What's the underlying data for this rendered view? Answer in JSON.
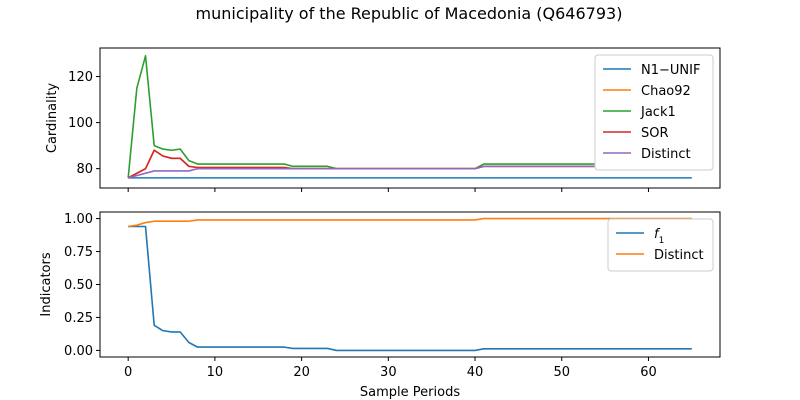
{
  "title": "municipality of the Republic of Macedonia (Q646793)",
  "chart_data": [
    {
      "type": "line",
      "ylabel": "Cardinality",
      "xlabel": "",
      "xlim": [
        -3.25,
        68.25
      ],
      "ylim": [
        71.6,
        132.4
      ],
      "xticks": [
        0,
        10,
        20,
        30,
        40,
        50,
        60
      ],
      "yticks": [
        80,
        100,
        120
      ],
      "ytick_labels": [
        "80",
        "100",
        "120"
      ],
      "legend_position": "upper right",
      "series": [
        {
          "name": "N1−UNIF",
          "color": "#1f77b4",
          "x": [
            0,
            65
          ],
          "y": [
            76,
            76
          ]
        },
        {
          "name": "Chao92",
          "color": "#ff7f0e",
          "x": [
            0,
            2,
            3,
            4,
            5,
            6,
            7,
            8,
            18,
            19,
            23,
            24,
            40,
            41,
            65
          ],
          "y": [
            76,
            80,
            88,
            85.5,
            84.5,
            84.5,
            81,
            80.5,
            80.5,
            80,
            80,
            80,
            80,
            81,
            81
          ]
        },
        {
          "name": "Jack1",
          "color": "#2ca02c",
          "x": [
            0,
            1,
            2,
            3,
            4,
            5,
            6,
            7,
            8,
            18,
            19,
            23,
            24,
            40,
            41,
            65
          ],
          "y": [
            76,
            115,
            129,
            90,
            88.5,
            88,
            88.5,
            83.5,
            82,
            82,
            81,
            81,
            80,
            80,
            82,
            82
          ]
        },
        {
          "name": "SOR",
          "color": "#d62728",
          "x": [
            0,
            2,
            3,
            4,
            5,
            6,
            7,
            8,
            18,
            19,
            23,
            24,
            40,
            41,
            65
          ],
          "y": [
            76,
            80,
            88,
            85.5,
            84.5,
            84.5,
            81,
            80.5,
            80.5,
            80,
            80,
            80,
            80,
            81,
            81
          ]
        },
        {
          "name": "Distinct",
          "color": "#9467bd",
          "x": [
            0,
            3,
            4,
            5,
            6,
            7,
            8,
            40,
            41,
            65
          ],
          "y": [
            76,
            79,
            79,
            79,
            79,
            79,
            80,
            80,
            81,
            81
          ]
        }
      ]
    },
    {
      "type": "line",
      "ylabel": "Indicators",
      "xlabel": "Sample Periods",
      "xlim": [
        -3.25,
        68.25
      ],
      "ylim": [
        -0.05,
        1.05
      ],
      "xticks": [
        0,
        10,
        20,
        30,
        40,
        50,
        60
      ],
      "xtick_labels": [
        "0",
        "10",
        "20",
        "30",
        "40",
        "50",
        "60"
      ],
      "yticks": [
        0.0,
        0.25,
        0.5,
        0.75,
        1.0
      ],
      "ytick_labels": [
        "0.00",
        "0.25",
        "0.50",
        "0.75",
        "1.00"
      ],
      "legend_position": "upper right",
      "series": [
        {
          "name": "f1",
          "color": "#1f77b4",
          "x": [
            0,
            1,
            2,
            3,
            4,
            5,
            6,
            7,
            8,
            18,
            19,
            23,
            24,
            40,
            41,
            65
          ],
          "y": [
            0.94,
            0.94,
            0.94,
            0.19,
            0.15,
            0.14,
            0.14,
            0.06,
            0.025,
            0.025,
            0.015,
            0.015,
            0.0,
            0.0,
            0.012,
            0.012
          ]
        },
        {
          "name": "Distinct",
          "color": "#ff7f0e",
          "x": [
            0,
            1,
            2,
            3,
            4,
            5,
            6,
            7,
            8,
            40,
            41,
            65
          ],
          "y": [
            0.94,
            0.95,
            0.97,
            0.98,
            0.98,
            0.98,
            0.98,
            0.98,
            0.99,
            0.99,
            1.0,
            1.0
          ]
        }
      ]
    }
  ]
}
